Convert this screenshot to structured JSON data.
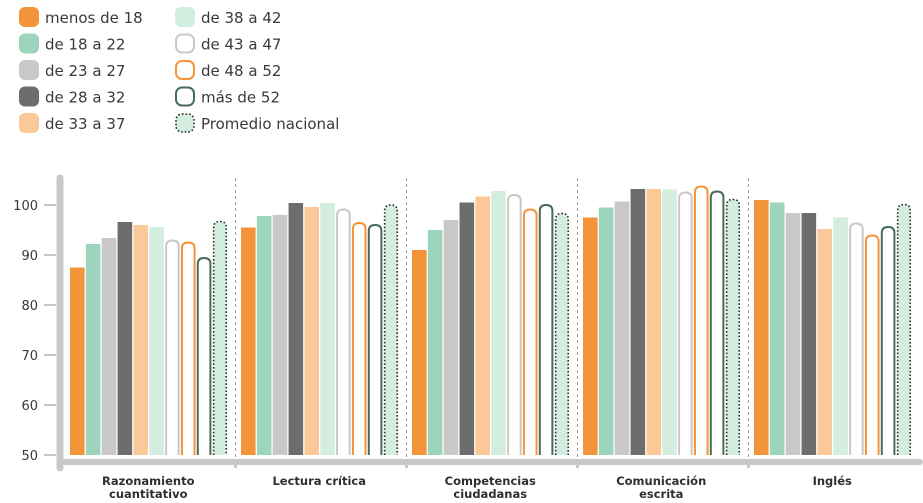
{
  "chart_data": {
    "type": "bar",
    "title": "",
    "xlabel": "",
    "ylabel": "",
    "ylim": [
      50,
      104
    ],
    "yticks": [
      50,
      60,
      70,
      80,
      90,
      100
    ],
    "grid": false,
    "legend_position": "top-left",
    "categories": [
      "Razonamiento cuantitativo",
      "Lectura crítica",
      "Competencias ciudadanas",
      "Comunicación escrita",
      "Inglés"
    ],
    "series": [
      {
        "name": "menos de 18",
        "values": [
          87.5,
          95.5,
          91,
          97.5,
          101
        ],
        "color": "#f4943a",
        "style": "solid"
      },
      {
        "name": "de 18 a 22",
        "values": [
          92.2,
          97.8,
          95,
          99.5,
          100.5
        ],
        "color": "#9dd4bc",
        "style": "solid"
      },
      {
        "name": "de 23 a 27",
        "values": [
          93.4,
          98,
          97,
          100.7,
          98.4
        ],
        "color": "#c8c8c8",
        "style": "solid"
      },
      {
        "name": "de 28 a 32",
        "values": [
          96.6,
          100.4,
          100.5,
          103.2,
          98.4
        ],
        "color": "#6d6d6d",
        "style": "solid"
      },
      {
        "name": "de 33 a 37",
        "values": [
          96,
          99.6,
          101.7,
          103.2,
          95.2
        ],
        "color": "#fbc997",
        "style": "solid"
      },
      {
        "name": "de 38 a 42",
        "values": [
          95.6,
          100.4,
          102.8,
          103.1,
          97.5
        ],
        "color": "#d3eddf",
        "style": "solid"
      },
      {
        "name": "de 43 a 47",
        "values": [
          93.1,
          99.3,
          102.2,
          102.7,
          96.5
        ],
        "color": "#c8c8c8",
        "style": "outline"
      },
      {
        "name": "de 48 a 52",
        "values": [
          92.7,
          96.6,
          99.3,
          103.9,
          94.1
        ],
        "color": "#f4943a",
        "style": "outline"
      },
      {
        "name": "más de 52",
        "values": [
          89.6,
          96.2,
          100.2,
          102.9,
          95.8
        ],
        "color": "#4a6a5a",
        "style": "outline"
      },
      {
        "name": "Promedio nacional",
        "values": [
          96.9,
          100.2,
          98.5,
          101.3,
          100.3
        ],
        "color": "#d3eddf",
        "style": "dotted"
      }
    ]
  }
}
